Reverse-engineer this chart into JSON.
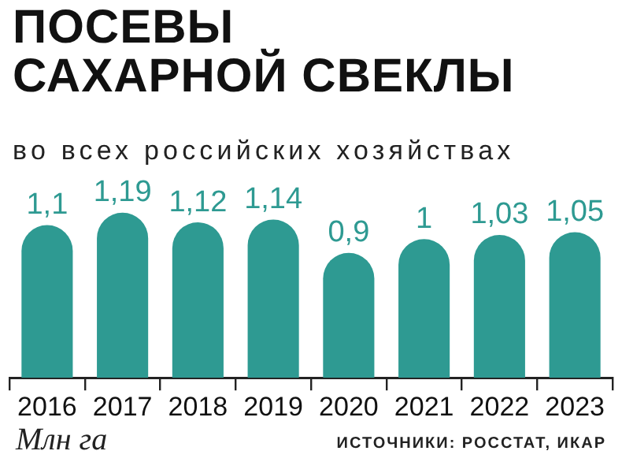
{
  "chart_data": {
    "type": "bar",
    "title": "ПОСЕВЫ\nСАХАРНОЙ СВЕКЛЫ",
    "subtitle": "во всех российских хозяйствах",
    "categories": [
      "2016",
      "2017",
      "2018",
      "2019",
      "2020",
      "2021",
      "2022",
      "2023"
    ],
    "values": [
      1.1,
      1.19,
      1.12,
      1.14,
      0.9,
      1,
      1.03,
      1.05
    ],
    "value_labels": [
      "1,1",
      "1,19",
      "1,12",
      "1,14",
      "0,9",
      "1",
      "1,03",
      "1,05"
    ],
    "color": "#2e9a92",
    "annotations": [
      "Млн га",
      "ИСТОЧНИКИ: РОССТАТ, ИКАР"
    ]
  }
}
